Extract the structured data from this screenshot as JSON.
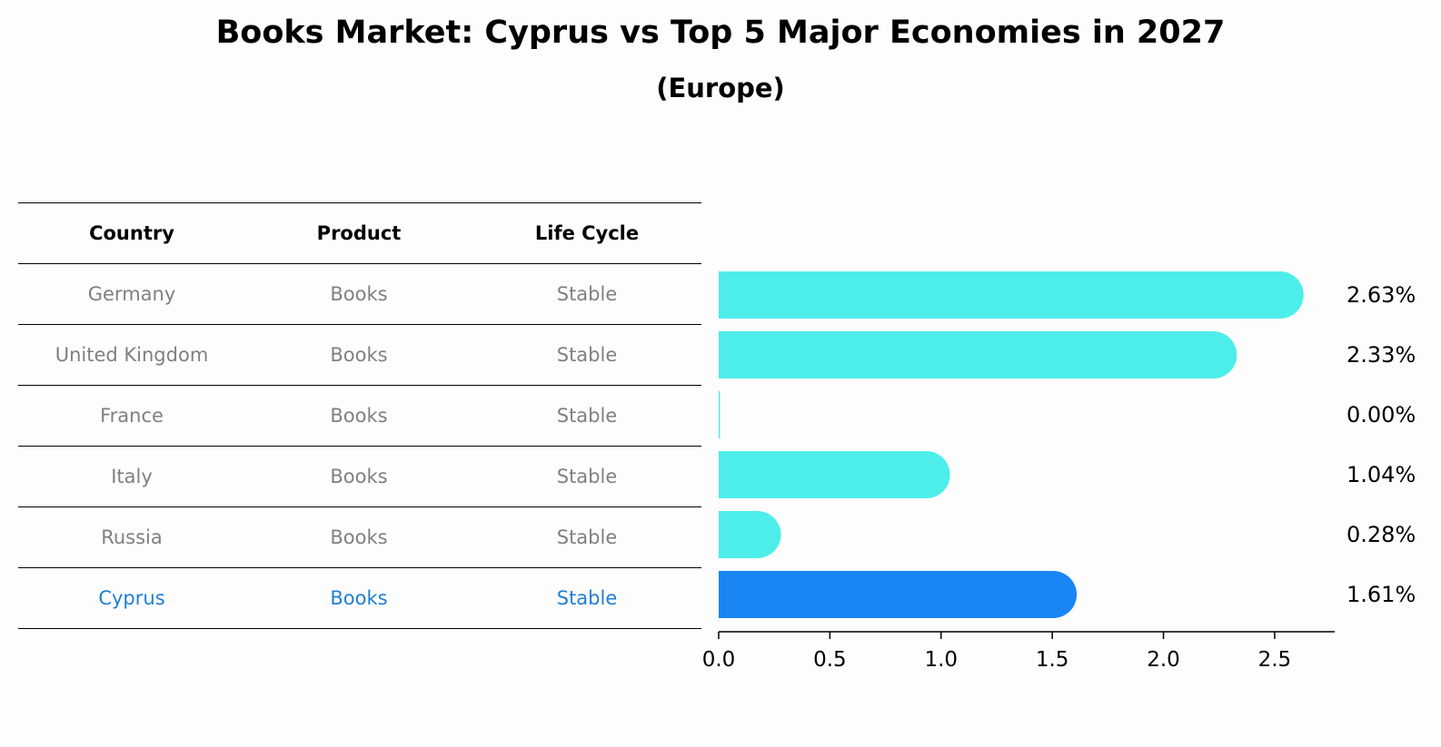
{
  "title": "Books Market: Cyprus vs Top 5 Major Economies in 2027",
  "subtitle": "(Europe)",
  "table": {
    "headers": [
      "Country",
      "Product",
      "Life Cycle"
    ],
    "rows": [
      {
        "country": "Germany",
        "product": "Books",
        "life_cycle": "Stable"
      },
      {
        "country": "United Kingdom",
        "product": "Books",
        "life_cycle": "Stable"
      },
      {
        "country": "France",
        "product": "Books",
        "life_cycle": "Stable"
      },
      {
        "country": "Italy",
        "product": "Books",
        "life_cycle": "Stable"
      },
      {
        "country": "Russia",
        "product": "Books",
        "life_cycle": "Stable"
      },
      {
        "country": "Cyprus",
        "product": "Books",
        "life_cycle": "Stable"
      }
    ]
  },
  "chart_data": {
    "type": "bar",
    "orientation": "horizontal",
    "categories": [
      "Germany",
      "United Kingdom",
      "France",
      "Italy",
      "Russia",
      "Cyprus"
    ],
    "values": [
      2.63,
      2.33,
      0.0,
      1.04,
      0.28,
      1.61
    ],
    "value_labels": [
      "2.63%",
      "2.33%",
      "0.00%",
      "1.04%",
      "0.28%",
      "1.61%"
    ],
    "highlight": "Cyprus",
    "xlim": [
      0,
      2.77
    ],
    "xticks": [
      0.0,
      0.5,
      1.0,
      1.5,
      2.0,
      2.5
    ],
    "xtick_labels": [
      "0.0",
      "0.5",
      "1.0",
      "1.5",
      "2.0",
      "2.5"
    ],
    "colors": {
      "default": "#4deeea",
      "highlight": "#1a85f5",
      "label": "#000000"
    }
  }
}
